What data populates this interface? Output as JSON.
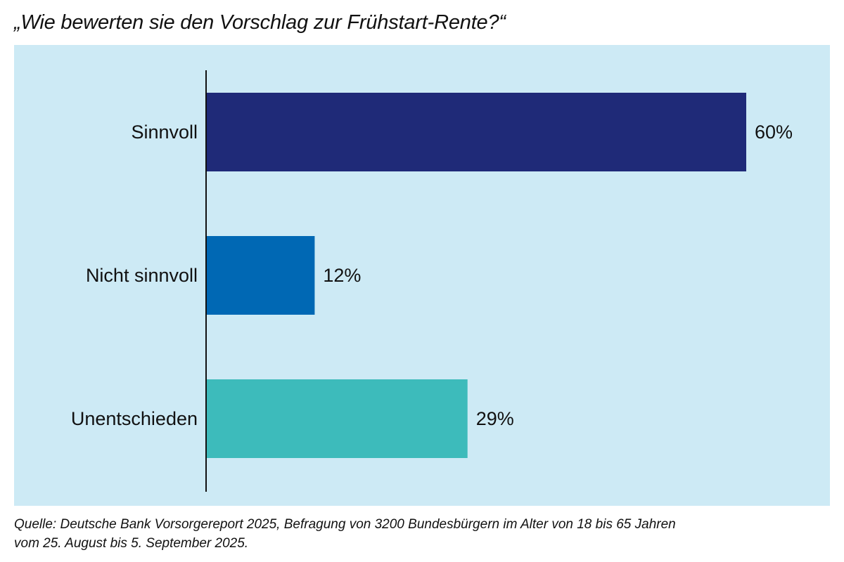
{
  "chart_data": {
    "type": "bar",
    "orientation": "horizontal",
    "title": "„Wie bewerten sie den Vorschlag zur Frühstart-Rente?“",
    "categories": [
      "Sinnvoll",
      "Nicht sinnvoll",
      "Unentschieden"
    ],
    "values": [
      60,
      12,
      29
    ],
    "value_labels": [
      "60%",
      "12%",
      "29%"
    ],
    "colors": [
      "#1f2a78",
      "#0068b4",
      "#3dbbbb"
    ],
    "background": "#cdeaf5",
    "xlim": [
      0,
      60
    ],
    "grid": false,
    "xlabel": "",
    "ylabel": ""
  },
  "source": {
    "line1": "Quelle: Deutsche Bank Vorsorgereport 2025, Befragung von 3200 Bundesbürgern im Alter von 18 bis 65 Jahren",
    "line2": "vom 25. August bis 5. September 2025."
  }
}
